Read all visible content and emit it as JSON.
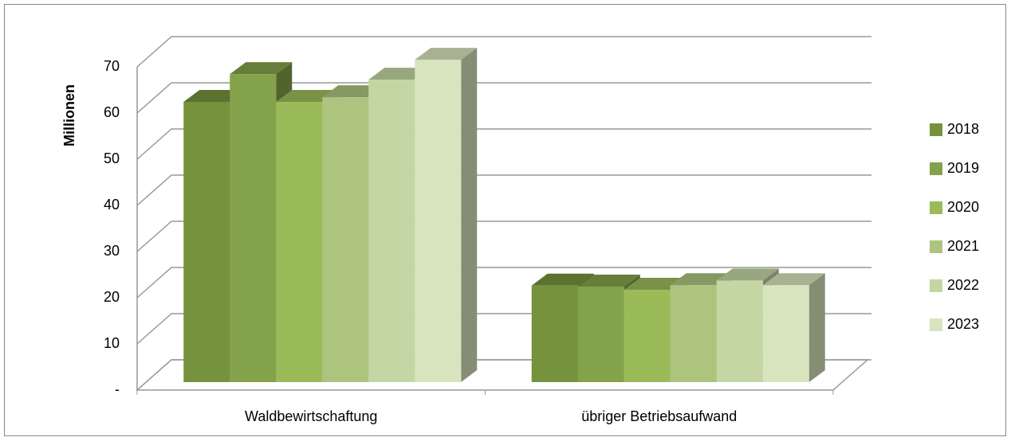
{
  "chart_data": {
    "type": "bar3d",
    "y_label": "Millionen",
    "categories": [
      "Waldbewirtschaftung",
      "übriger Betriebsaufwand"
    ],
    "series": [
      {
        "name": "2018",
        "color": "#76923c",
        "values": [
          60.7,
          20.9
        ]
      },
      {
        "name": "2019",
        "color": "#84a24a",
        "values": [
          66.7,
          20.7
        ]
      },
      {
        "name": "2020",
        "color": "#9bbb59",
        "values": [
          60.7,
          20.0
        ]
      },
      {
        "name": "2021",
        "color": "#adc47f",
        "values": [
          61.7,
          21.0
        ]
      },
      {
        "name": "2022",
        "color": "#c3d6a3",
        "values": [
          65.5,
          22.0
        ]
      },
      {
        "name": "2023",
        "color": "#d7e4bd",
        "values": [
          69.8,
          21.0
        ]
      }
    ],
    "ylim": [
      0,
      70
    ],
    "yticks": [
      {
        "value": 0,
        "label": "-"
      },
      10,
      20,
      30,
      40,
      50,
      60,
      70
    ],
    "grid": true,
    "legend": "right"
  }
}
